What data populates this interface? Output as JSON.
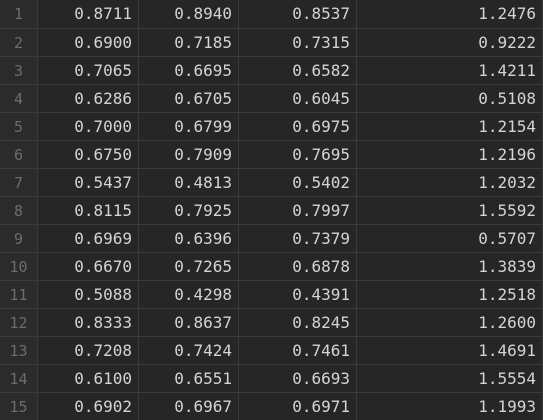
{
  "table": {
    "rows": [
      {
        "index": "1",
        "cells": [
          "0.8711",
          "0.8940",
          "0.8537",
          "1.2476"
        ]
      },
      {
        "index": "2",
        "cells": [
          "0.6900",
          "0.7185",
          "0.7315",
          "0.9222"
        ]
      },
      {
        "index": "3",
        "cells": [
          "0.7065",
          "0.6695",
          "0.6582",
          "1.4211"
        ]
      },
      {
        "index": "4",
        "cells": [
          "0.6286",
          "0.6705",
          "0.6045",
          "0.5108"
        ]
      },
      {
        "index": "5",
        "cells": [
          "0.7000",
          "0.6799",
          "0.6975",
          "1.2154"
        ]
      },
      {
        "index": "6",
        "cells": [
          "0.6750",
          "0.7909",
          "0.7695",
          "1.2196"
        ]
      },
      {
        "index": "7",
        "cells": [
          "0.5437",
          "0.4813",
          "0.5402",
          "1.2032"
        ]
      },
      {
        "index": "8",
        "cells": [
          "0.8115",
          "0.7925",
          "0.7997",
          "1.5592"
        ]
      },
      {
        "index": "9",
        "cells": [
          "0.6969",
          "0.6396",
          "0.7379",
          "0.5707"
        ]
      },
      {
        "index": "10",
        "cells": [
          "0.6670",
          "0.7265",
          "0.6878",
          "1.3839"
        ]
      },
      {
        "index": "11",
        "cells": [
          "0.5088",
          "0.4298",
          "0.4391",
          "1.2518"
        ]
      },
      {
        "index": "12",
        "cells": [
          "0.8333",
          "0.8637",
          "0.8245",
          "1.2600"
        ]
      },
      {
        "index": "13",
        "cells": [
          "0.7208",
          "0.7424",
          "0.7461",
          "1.4691"
        ]
      },
      {
        "index": "14",
        "cells": [
          "0.6100",
          "0.6551",
          "0.6693",
          "1.5554"
        ]
      },
      {
        "index": "15",
        "cells": [
          "0.6902",
          "0.6967",
          "0.6971",
          "1.1993"
        ]
      }
    ]
  },
  "colors": {
    "background": "#262626",
    "gutter_background": "#2b2b2b",
    "grid_line": "#3a3a3a",
    "cell_text": "#d4d4d4",
    "row_number_text": "#6d6d6d"
  }
}
